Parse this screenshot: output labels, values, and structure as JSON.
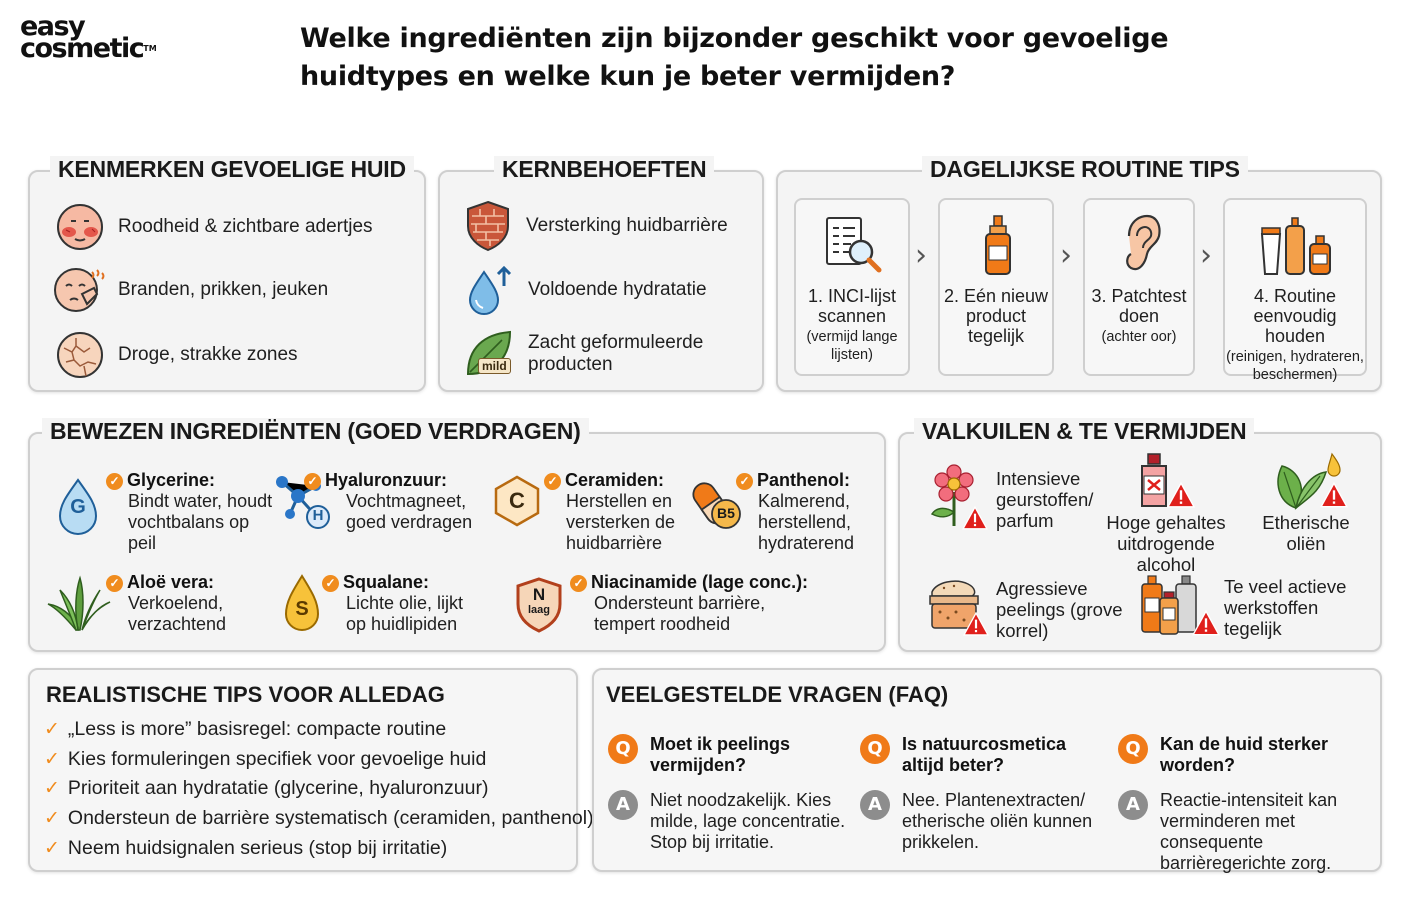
{
  "logo": {
    "line1": "easy",
    "line2": "cosmetic",
    "tm": "TM"
  },
  "title": "Welke ingrediënten zijn bijzonder geschikt voor gevoelige huidtypes en welke kun je beter vermijden?",
  "kenmerken": {
    "title": "KENMERKEN GEVOELIGE HUID",
    "items": [
      {
        "label": "Roodheid & zichtbare adertjes",
        "icon": "red-face-icon"
      },
      {
        "label": "Branden, prikken, jeuken",
        "icon": "itchy-face-icon"
      },
      {
        "label": "Droge, strakke zones",
        "icon": "cracked-skin-icon"
      }
    ]
  },
  "kernbehoeften": {
    "title": "KERNBEHOEFTEN",
    "items": [
      {
        "label": "Versterking huidbarrière",
        "icon": "brick-shield-icon"
      },
      {
        "label": "Voldoende hydratatie",
        "icon": "water-drop-icon"
      },
      {
        "label": "Zacht geformuleerde producten",
        "icon": "mild-leaf-icon",
        "badge": "mild"
      }
    ]
  },
  "routine": {
    "title": "DAGELIJKSE ROUTINE TIPS",
    "steps": [
      {
        "label": "1. INCI-lijst scannen",
        "sub": "(vermijd lange lijsten)",
        "icon": "magnifier-list-icon"
      },
      {
        "label": "2. Eén nieuw product tegelijk",
        "sub": "",
        "icon": "bottle-icon"
      },
      {
        "label": "3. Patchtest doen",
        "sub": "(achter oor)",
        "icon": "ear-icon"
      },
      {
        "label": "4. Routine eenvoudig houden",
        "sub": "(reinigen, hydrateren, beschermen)",
        "icon": "products-icon"
      }
    ]
  },
  "bewezen": {
    "title": "BEWEZEN INGREDIËNTEN (GOED VERDRAGEN)",
    "items": [
      {
        "name": "Glycerine:",
        "desc": "Bindt water, houdt vochtbalans op peil",
        "icon": "glycerine-drop-icon",
        "badge": "G"
      },
      {
        "name": "Hyaluronzuur:",
        "desc": "Vochtmagneet, goed verdragen",
        "icon": "molecule-icon",
        "badge": "H"
      },
      {
        "name": "Ceramiden:",
        "desc": "Herstellen en versterken de huidbarrière",
        "icon": "hexagon-icon",
        "badge": "C"
      },
      {
        "name": "Panthenol:",
        "desc": "Kalmerend, herstellend, hydraterend",
        "icon": "capsule-icon",
        "badge": "B5"
      },
      {
        "name": "Aloë vera:",
        "desc": "Verkoelend, verzachtend",
        "icon": "aloe-icon"
      },
      {
        "name": "Squalane:",
        "desc": "Lichte olie, lijkt op huidlipiden",
        "icon": "oil-drop-icon",
        "badge": "S"
      },
      {
        "name": "Niacinamide (lage conc.):",
        "desc": "Ondersteunt barrière, tempert roodheid",
        "icon": "niacinamide-shield-icon",
        "badge": "N",
        "badge2": "laag"
      }
    ]
  },
  "valkuilen": {
    "title": "VALKUILEN & TE VERMIJDEN",
    "items": [
      {
        "label": "Intensieve geurstoffen/ parfum",
        "icon": "flower-warning-icon"
      },
      {
        "label": "Hoge gehaltes uitdrogende alcohol",
        "icon": "alcohol-bottle-warning-icon"
      },
      {
        "label": "Etherische oliën",
        "icon": "leaves-warning-icon"
      },
      {
        "label": "Agressieve peelings (grove korrel)",
        "icon": "scrub-jar-warning-icon"
      },
      {
        "label": "Te veel actieve werkstoffen tegelijk",
        "icon": "many-bottles-warning-icon"
      }
    ]
  },
  "tips": {
    "title": "REALISTISCHE TIPS VOOR ALLEDAG",
    "items": [
      "„Less is more” basisregel: compacte routine",
      "Kies formuleringen specifiek voor gevoelige huid",
      "Prioriteit aan hydratatie (glycerine, hyaluronzuur)",
      "Ondersteun de barrière systematisch (ceramiden, panthenol)",
      "Neem huidsignalen serieus (stop bij irritatie)"
    ]
  },
  "faq": {
    "title": "VEELGESTELDE VRAGEN (FAQ)",
    "q_badge": "Q",
    "a_badge": "A",
    "items": [
      {
        "q": "Moet ik peelings vermijden?",
        "a": "Niet noodzakelijk. Kies milde, lage concentratie. Stop bij irritatie."
      },
      {
        "q": "Is natuurcosmetica altijd beter?",
        "a": "Nee. Plantenextracten/ etherische oliën kunnen prikkelen."
      },
      {
        "q": "Kan de huid sterker worden?",
        "a": "Reactie-intensiteit kan verminderen met consequente barrièregerichte zorg."
      }
    ]
  },
  "colors": {
    "accent": "#f08c1e",
    "warning": "#e0201c",
    "panel_bg": "#f4f4f4",
    "border": "#cfcfcf"
  }
}
